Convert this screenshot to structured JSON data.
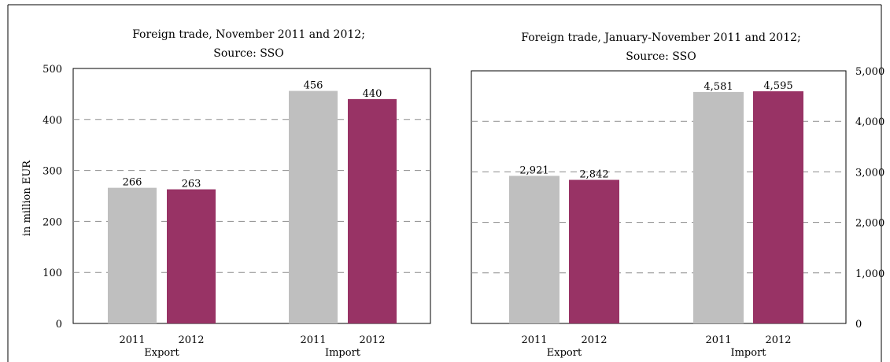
{
  "chart_data": [
    {
      "type": "bar",
      "title_lines": [
        "Foreign trade, November 2011 and 2012;",
        "Source: SSO"
      ],
      "ylabel": "in million EUR",
      "y_axis_side": "left",
      "ylim": [
        0,
        500
      ],
      "yticks": [
        0,
        100,
        200,
        300,
        400,
        500
      ],
      "ytick_labels": [
        "0",
        "100",
        "200",
        "300",
        "400",
        "500"
      ],
      "grid": "dashed horizontal",
      "groups": [
        "Export",
        "Import"
      ],
      "series": [
        {
          "name": "2011",
          "color": "#bfbfbf",
          "values": [
            266,
            456
          ],
          "labels": [
            "266",
            "456"
          ]
        },
        {
          "name": "2012",
          "color": "#983365",
          "values": [
            263,
            440
          ],
          "labels": [
            "263",
            "440"
          ]
        }
      ]
    },
    {
      "type": "bar",
      "title_lines": [
        "Foreign trade, January-November 2011 and 2012;",
        "Source: SSO"
      ],
      "ylabel": "",
      "y_axis_side": "right",
      "ylim": [
        0,
        5000
      ],
      "yticks": [
        0,
        1000,
        2000,
        3000,
        4000,
        5000
      ],
      "ytick_labels": [
        "0",
        "1,000",
        "2,000",
        "3,000",
        "4,000",
        "5,000"
      ],
      "grid": "dashed horizontal",
      "groups": [
        "Export",
        "Import"
      ],
      "series": [
        {
          "name": "2011",
          "color": "#bfbfbf",
          "values": [
            2921,
            4581
          ],
          "labels": [
            "2,921",
            "4,581"
          ]
        },
        {
          "name": "2012",
          "color": "#983365",
          "values": [
            2842,
            4595
          ],
          "labels": [
            "2,842",
            "4,595"
          ]
        }
      ]
    }
  ]
}
